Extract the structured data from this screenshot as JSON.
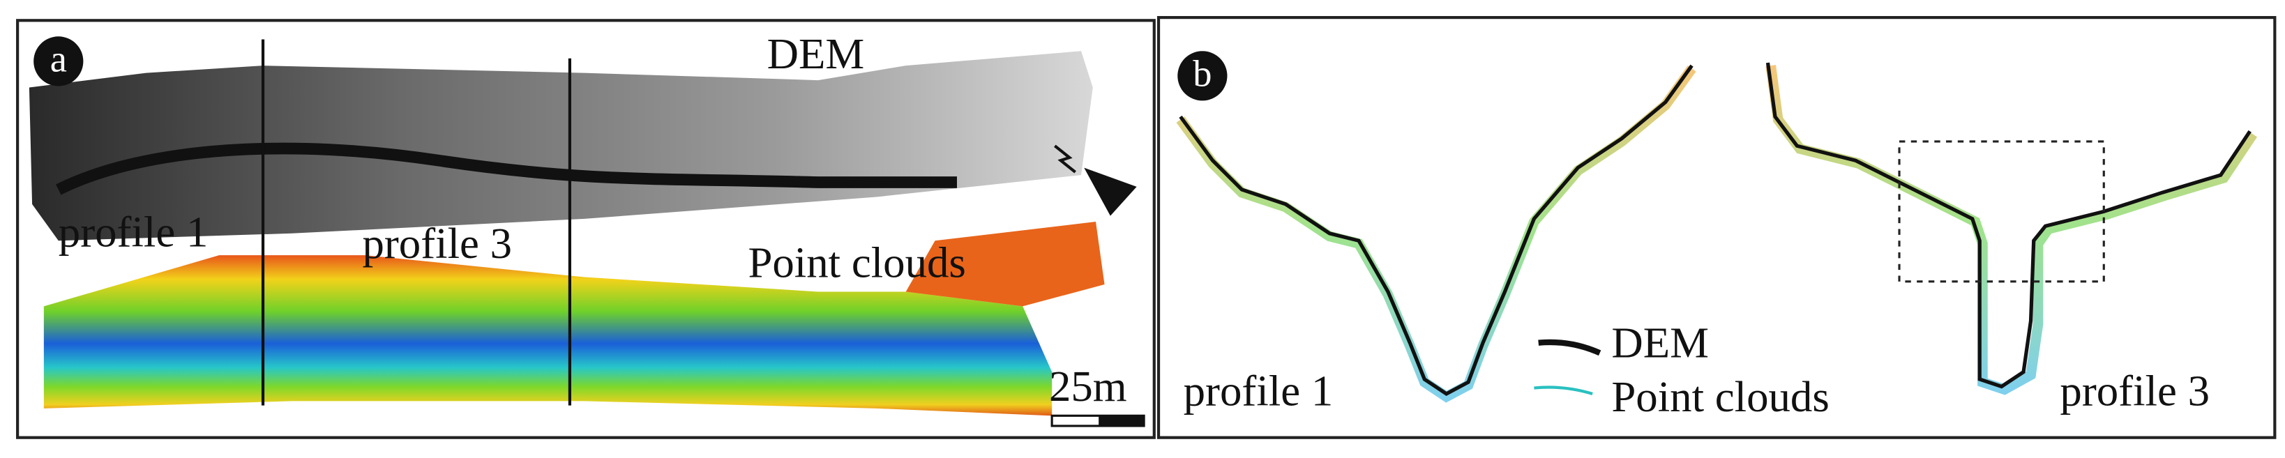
{
  "panel_a": {
    "label": "a",
    "dem_label": "DEM",
    "profiles": [
      "profile 1",
      "profile 3"
    ],
    "point_clouds_label": "Point clouds",
    "scale_bar": "25m"
  },
  "panel_b": {
    "label": "b",
    "profiles": [
      "profile 1",
      "profile 3"
    ],
    "legend": [
      {
        "name": "DEM"
      },
      {
        "name": "Point clouds"
      }
    ]
  }
}
